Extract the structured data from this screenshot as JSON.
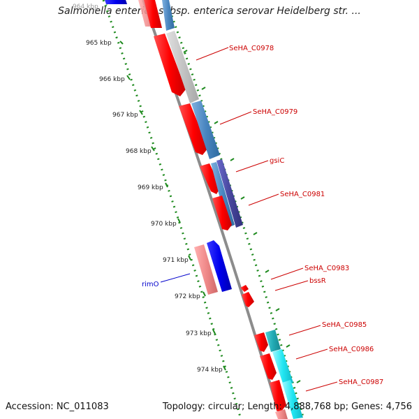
{
  "title": "Salmonella enterica subsp. enterica serovar Heidelberg str. ...",
  "footer": {
    "accession": "Accession: NC_011083",
    "summary": "Topology: circular; Length: 4,888,768 bp; Genes: 4,756"
  },
  "ticks": [
    {
      "label": "964 kbp",
      "faded": true
    },
    {
      "label": "965 kbp"
    },
    {
      "label": "966 kbp"
    },
    {
      "label": "967 kbp"
    },
    {
      "label": "968 kbp"
    },
    {
      "label": "969 kbp"
    },
    {
      "label": "970 kbp"
    },
    {
      "label": "971 kbp"
    },
    {
      "label": "972 kbp"
    },
    {
      "label": "973 kbp"
    },
    {
      "label": "974 kbp"
    }
  ],
  "gene_labels": [
    {
      "text": "SeHA_C0978",
      "color": "#cc0000"
    },
    {
      "text": "SeHA_C0979",
      "color": "#cc0000"
    },
    {
      "text": "gsiC",
      "color": "#cc0000"
    },
    {
      "text": "SeHA_C0981",
      "color": "#cc0000"
    },
    {
      "text": "SeHA_C0983",
      "color": "#cc0000"
    },
    {
      "text": "bssR",
      "color": "#cc0000"
    },
    {
      "text": "SeHA_C0985",
      "color": "#cc0000"
    },
    {
      "text": "SeHA_C0986",
      "color": "#cc0000"
    },
    {
      "text": "SeHA_C0987",
      "color": "#cc0000"
    },
    {
      "text": "rimO",
      "color": "#0000cc"
    }
  ],
  "colors": {
    "backbone": "#8c8c8c",
    "tick_mark": "#1e8a1e",
    "cds": "#ff0000",
    "cds_reverse": "#0000ee",
    "gene_plus": "#4a86c0",
    "gene_minus": "#f08a8a",
    "label_line_red": "#cc0000",
    "label_line_blue": "#0000cc"
  }
}
